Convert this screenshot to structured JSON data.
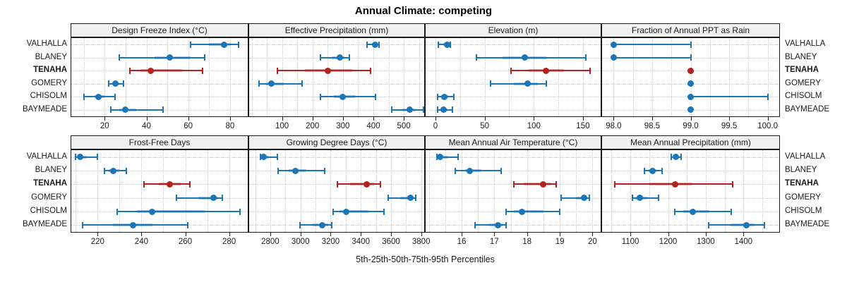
{
  "title": "Annual Climate: competing",
  "caption": "5th-25th-50th-75th-95th Percentiles",
  "sites": [
    "VALHALLA",
    "BLANEY",
    "TENAHA",
    "GOMERY",
    "CHISOLM",
    "BAYMEADE"
  ],
  "highlight_site": "TENAHA",
  "percentile_labels": [
    "5th",
    "25th",
    "50th",
    "75th",
    "95th"
  ],
  "colors": {
    "series": "#1c75b4",
    "series_band": "rgba(28,117,180,0.4)",
    "highlight": "#b22222",
    "highlight_band": "rgba(178,34,34,0.4)",
    "strip_bg": "#f0f0f0",
    "grid": "#cccccc",
    "border": "#1a1a1a"
  },
  "chart_data": [
    {
      "type": "dotplot-interval",
      "title": "Design Freeze Index (°C)",
      "xlim": [
        4,
        88.5
      ],
      "tick_values": [
        20,
        40,
        60,
        80
      ],
      "tick_labels": [
        "20",
        "40",
        "60",
        "80"
      ],
      "minor_step": 10,
      "values": {
        "VALHALLA": [
          61,
          70,
          77,
          80,
          84
        ],
        "BLANEY": [
          27,
          44,
          51,
          61,
          68
        ],
        "TENAHA": [
          32,
          37,
          42,
          57,
          67
        ],
        "GOMERY": [
          22,
          24,
          25,
          27,
          29
        ],
        "CHISOLM": [
          10,
          15,
          17,
          20,
          25
        ],
        "BAYMEADE": [
          23,
          27,
          30,
          35,
          48
        ]
      }
    },
    {
      "type": "dotplot-interval",
      "title": "Effective Precipitation (mm)",
      "xlim": [
        -8,
        567
      ],
      "tick_values": [
        100,
        200,
        300,
        400,
        500
      ],
      "tick_labels": [
        "100",
        "200",
        "300",
        "400",
        "500"
      ],
      "minor_step": 50,
      "values": {
        "VALHALLA": [
          378,
          395,
          405,
          412,
          419
        ],
        "BLANEY": [
          225,
          263,
          290,
          305,
          320
        ],
        "TENAHA": [
          85,
          175,
          250,
          330,
          390
        ],
        "GOMERY": [
          25,
          48,
          65,
          105,
          165
        ],
        "CHISOLM": [
          225,
          270,
          300,
          340,
          406
        ],
        "BAYMEADE": [
          460,
          495,
          520,
          540,
          565
        ]
      }
    },
    {
      "type": "dotplot-interval",
      "title": "Elevation (m)",
      "xlim": [
        -10,
        168
      ],
      "tick_values": [
        0,
        50,
        100,
        150
      ],
      "tick_labels": [
        "0",
        "50",
        "100",
        "150"
      ],
      "minor_step": 25,
      "values": {
        "VALHALLA": [
          3,
          8,
          12,
          14,
          15
        ],
        "BLANEY": [
          42,
          68,
          91,
          113,
          153
        ],
        "TENAHA": [
          77,
          95,
          112,
          131,
          157
        ],
        "GOMERY": [
          56,
          80,
          94,
          104,
          113
        ],
        "CHISOLM": [
          2,
          6,
          9,
          13,
          19
        ],
        "BAYMEADE": [
          2,
          5,
          8,
          12,
          17
        ]
      }
    },
    {
      "type": "dotplot-interval",
      "title": "Fraction of Annual PPT as Rain",
      "xlim": [
        97.85,
        100.15
      ],
      "tick_values": [
        98.0,
        98.5,
        99.0,
        99.5,
        100.0
      ],
      "tick_labels": [
        "98.0",
        "98.5",
        "99.0",
        "99.5",
        "100.0"
      ],
      "minor_step": 0.25,
      "values": {
        "VALHALLA": [
          98,
          98,
          98,
          98,
          99
        ],
        "BLANEY": [
          98,
          98,
          98,
          98,
          99
        ],
        "TENAHA": [
          99,
          99,
          99,
          99,
          99
        ],
        "GOMERY": [
          99,
          99,
          99,
          99,
          99
        ],
        "CHISOLM": [
          99,
          99,
          99,
          99,
          100
        ],
        "BAYMEADE": [
          99,
          99,
          99,
          99,
          99
        ]
      }
    },
    {
      "type": "dotplot-interval",
      "title": "Frost-Free Days",
      "xlim": [
        208,
        288.5
      ],
      "tick_values": [
        220,
        240,
        260,
        280
      ],
      "tick_labels": [
        "220",
        "240",
        "260",
        "280"
      ],
      "minor_step": 10,
      "values": {
        "VALHALLA": [
          210,
          211,
          212,
          215,
          220
        ],
        "BLANEY": [
          223,
          225,
          227,
          230,
          233
        ],
        "TENAHA": [
          241,
          248,
          253,
          258,
          262
        ],
        "GOMERY": [
          256,
          266,
          273,
          275,
          277
        ],
        "CHISOLM": [
          229,
          238,
          245,
          269,
          285
        ],
        "BAYMEADE": [
          213,
          227,
          236,
          245,
          261
        ]
      }
    },
    {
      "type": "dotplot-interval",
      "title": "Growing Degree Days (°C)",
      "xlim": [
        2660,
        3820
      ],
      "tick_values": [
        2800,
        3000,
        3200,
        3400,
        3600,
        3800
      ],
      "tick_labels": [
        "2800",
        "3000",
        "3200",
        "3400",
        "3600",
        "3800"
      ],
      "minor_step": 100,
      "values": {
        "VALHALLA": [
          2735,
          2745,
          2757,
          2790,
          2845
        ],
        "BLANEY": [
          2850,
          2920,
          2965,
          3040,
          3160
        ],
        "TENAHA": [
          3245,
          3330,
          3440,
          3490,
          3530
        ],
        "GOMERY": [
          3580,
          3660,
          3730,
          3750,
          3765
        ],
        "CHISOLM": [
          3215,
          3260,
          3305,
          3450,
          3555
        ],
        "BAYMEADE": [
          2995,
          3080,
          3145,
          3185,
          3205
        ]
      }
    },
    {
      "type": "dotplot-interval",
      "title": "Mean Annual Air Temperature (°C)",
      "xlim": [
        14.9,
        20.25
      ],
      "tick_values": [
        16,
        17,
        18,
        19,
        20
      ],
      "tick_labels": [
        "16",
        "17",
        "18",
        "19",
        "20"
      ],
      "minor_step": 0.5,
      "values": {
        "VALHALLA": [
          15.25,
          15.3,
          15.35,
          15.6,
          15.9
        ],
        "BLANEY": [
          15.8,
          16.1,
          16.25,
          16.6,
          17.2
        ],
        "TENAHA": [
          17.6,
          17.9,
          18.5,
          18.75,
          18.9
        ],
        "GOMERY": [
          19.05,
          19.5,
          19.75,
          19.85,
          19.9
        ],
        "CHISOLM": [
          17.35,
          17.6,
          17.85,
          18.5,
          19.0
        ],
        "BAYMEADE": [
          16.4,
          16.85,
          17.1,
          17.25,
          17.35
        ]
      }
    },
    {
      "type": "dotplot-interval",
      "title": "Mean Annual Precipitation (mm)",
      "xlim": [
        1025,
        1495
      ],
      "tick_values": [
        1100,
        1200,
        1300,
        1400
      ],
      "tick_labels": [
        "1100",
        "1200",
        "1300",
        "1400"
      ],
      "minor_step": 50,
      "values": {
        "VALHALLA": [
          1208,
          1215,
          1220,
          1228,
          1235
        ],
        "BLANEY": [
          1138,
          1148,
          1158,
          1170,
          1185
        ],
        "TENAHA": [
          1058,
          1150,
          1218,
          1265,
          1372
        ],
        "GOMERY": [
          1105,
          1113,
          1125,
          1145,
          1175
        ],
        "CHISOLM": [
          1218,
          1240,
          1265,
          1310,
          1368
        ],
        "BAYMEADE": [
          1308,
          1365,
          1408,
          1430,
          1455
        ]
      }
    }
  ]
}
